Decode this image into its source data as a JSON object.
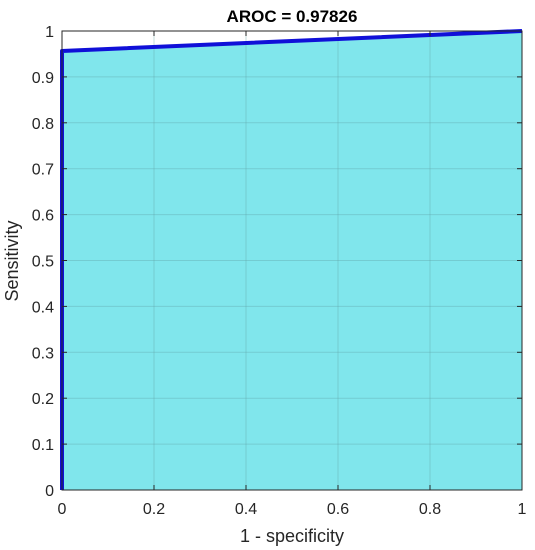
{
  "chart_data": {
    "type": "area",
    "title": "AROC = 0.97826",
    "xlabel": "1 - specificity",
    "ylabel": "Sensitivity",
    "xlim": [
      0,
      1
    ],
    "ylim": [
      0,
      1
    ],
    "xticks": [
      0,
      0.2,
      0.4,
      0.6,
      0.8,
      1
    ],
    "xtick_labels": [
      "0",
      "0.2",
      "0.4",
      "0.6",
      "0.8",
      "1"
    ],
    "yticks": [
      0,
      0.1,
      0.2,
      0.3,
      0.4,
      0.5,
      0.6,
      0.7,
      0.8,
      0.9,
      1
    ],
    "ytick_labels": [
      "0",
      "0.1",
      "0.2",
      "0.3",
      "0.4",
      "0.5",
      "0.6",
      "0.7",
      "0.8",
      "0.9",
      "1"
    ],
    "grid": true,
    "series": [
      {
        "x": [
          0,
          0,
          1
        ],
        "y": [
          0,
          0.9565,
          1
        ],
        "line_color": "#1010d8",
        "fill_color": "#80e6ec"
      }
    ]
  }
}
